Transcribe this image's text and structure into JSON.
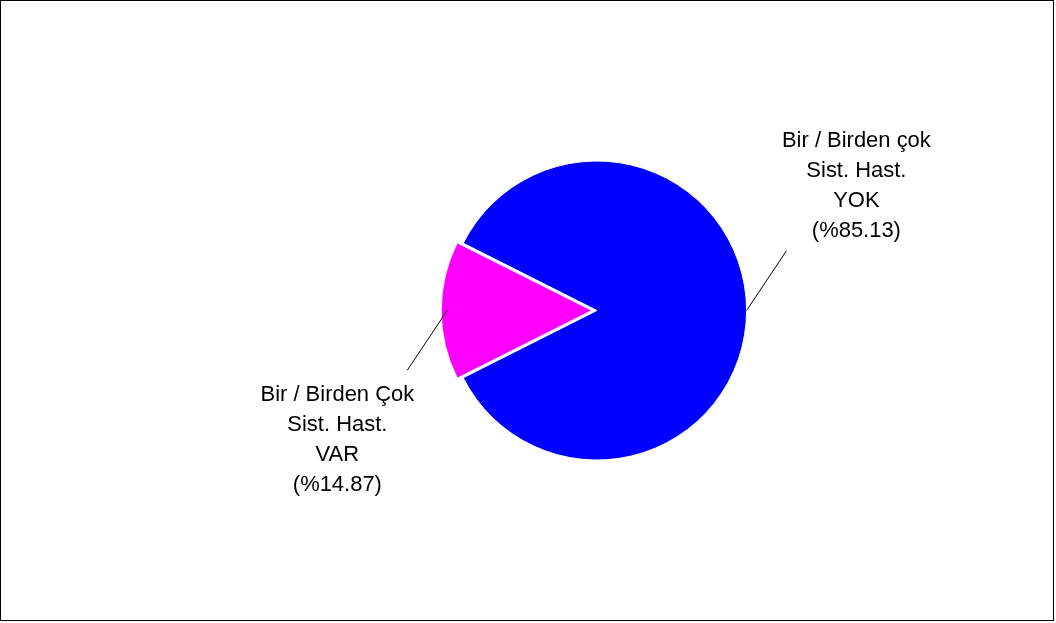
{
  "chart_data": {
    "type": "pie",
    "categories": [
      "Bir / Birden çok\nSist. Hast.\nYOK",
      "Bir / Birden Çok\nSist. Hast.\nVAR"
    ],
    "values": [
      85.13,
      14.87
    ],
    "value_labels": [
      "(%85.13)",
      "(%14.87)"
    ],
    "colors": [
      "#0000ff",
      "#ff00ff"
    ],
    "legend": false
  }
}
